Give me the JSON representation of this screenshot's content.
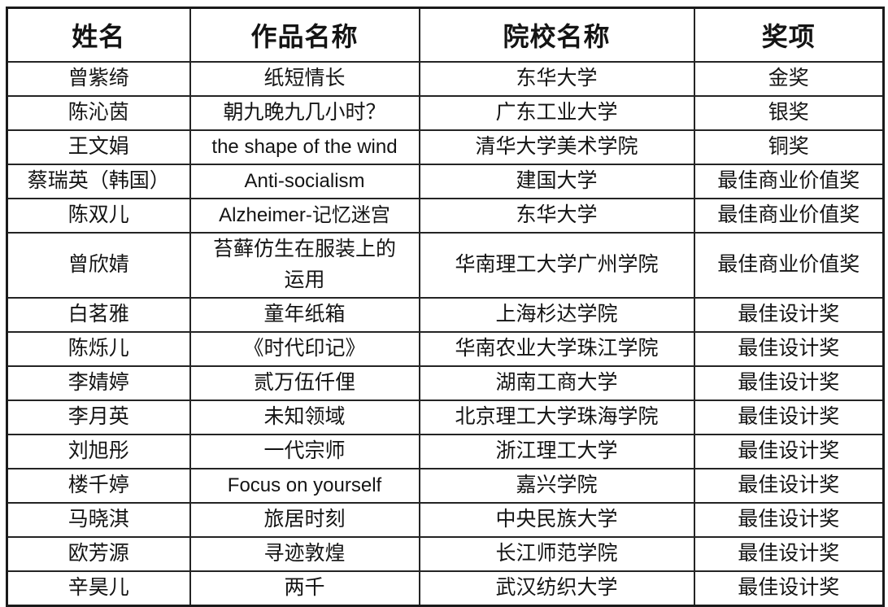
{
  "page": {
    "background": "#ffffff",
    "border_color": "#1a1a1a",
    "text_color": "#141414"
  },
  "table": {
    "headers": [
      "姓名",
      "作品名称",
      "院校名称",
      "奖项"
    ],
    "rows": [
      [
        "曾紫绮",
        "纸短情长",
        "东华大学",
        "金奖"
      ],
      [
        "陈沁茵",
        "朝九晚九几小时？",
        "广东工业大学",
        "银奖"
      ],
      [
        "王文娟",
        "the shape of the wind",
        "清华大学美术学院",
        "铜奖"
      ],
      [
        "蔡瑞英（韩国）",
        "Anti-socialism",
        "建国大学",
        "最佳商业价值奖"
      ],
      [
        "陈双儿",
        "Alzheimer-记忆迷宫",
        "东华大学",
        "最佳商业价值奖"
      ],
      [
        "曾欣婧",
        "苔藓仿生在服装上的\n运用",
        "华南理工大学广州学院",
        "最佳商业价值奖"
      ],
      [
        "白茗雅",
        "童年纸箱",
        "上海杉达学院",
        "最佳设计奖"
      ],
      [
        "陈烁儿",
        "《时代印记》",
        "华南农业大学珠江学院",
        "最佳设计奖"
      ],
      [
        "李婧婷",
        "贰万伍仟俚",
        "湖南工商大学",
        "最佳设计奖"
      ],
      [
        "李月英",
        "未知领域",
        "北京理工大学珠海学院",
        "最佳设计奖"
      ],
      [
        "刘旭彤",
        "一代宗师",
        "浙江理工大学",
        "最佳设计奖"
      ],
      [
        "楼千婷",
        "Focus on yourself",
        "嘉兴学院",
        "最佳设计奖"
      ],
      [
        "马晓淇",
        "旅居时刻",
        "中央民族大学",
        "最佳设计奖"
      ],
      [
        "欧芳源",
        "寻迹敦煌",
        "长江师范学院",
        "最佳设计奖"
      ],
      [
        "辛昊儿",
        "两千",
        "武汉纺织大学",
        "最佳设计奖"
      ]
    ]
  }
}
